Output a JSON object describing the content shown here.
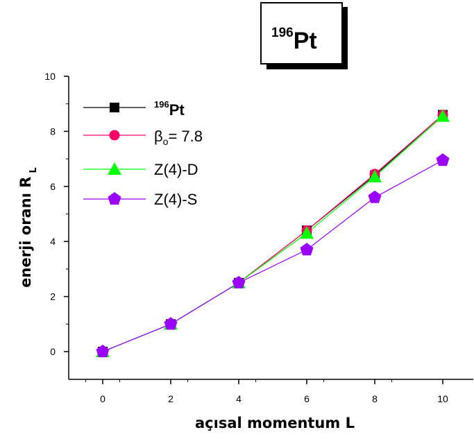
{
  "chart_data": {
    "type": "line",
    "title": {
      "sup": "196",
      "main": "Pt"
    },
    "xlabel": "açısal momentum L",
    "ylabel": {
      "main": "enerji oranı R",
      "sub": "L"
    },
    "xlim": [
      -1,
      11
    ],
    "ylim": [
      -1,
      10
    ],
    "xticks": [
      0,
      2,
      4,
      6,
      8,
      10
    ],
    "yticks": [
      0,
      2,
      4,
      6,
      8,
      10
    ],
    "legend_position": "top-left",
    "series": [
      {
        "label_sup": "196",
        "label_main": "Pt",
        "marker": "square",
        "color": "#000000",
        "x": [
          0,
          2,
          4,
          6,
          8,
          10
        ],
        "y": [
          0,
          1.0,
          2.5,
          4.4,
          6.4,
          8.6
        ]
      },
      {
        "label_main": "β",
        "label_sub": "o",
        "label_rest": "= 7.8",
        "marker": "circle",
        "color": "#ff0066",
        "x": [
          0,
          2,
          4,
          6,
          8,
          10
        ],
        "y": [
          0,
          1.0,
          2.5,
          4.4,
          6.45,
          8.6
        ]
      },
      {
        "label_main": "Z(4)-D",
        "marker": "triangle",
        "color": "#00ff00",
        "x": [
          0,
          2,
          4,
          6,
          8,
          10
        ],
        "y": [
          0,
          1.0,
          2.5,
          4.3,
          6.35,
          8.55
        ]
      },
      {
        "label_main": "Z(4)-S",
        "marker": "pentagon",
        "color": "#9900ff",
        "x": [
          0,
          2,
          4,
          6,
          8,
          10
        ],
        "y": [
          0,
          1.0,
          2.5,
          3.7,
          5.6,
          6.95
        ]
      }
    ]
  }
}
